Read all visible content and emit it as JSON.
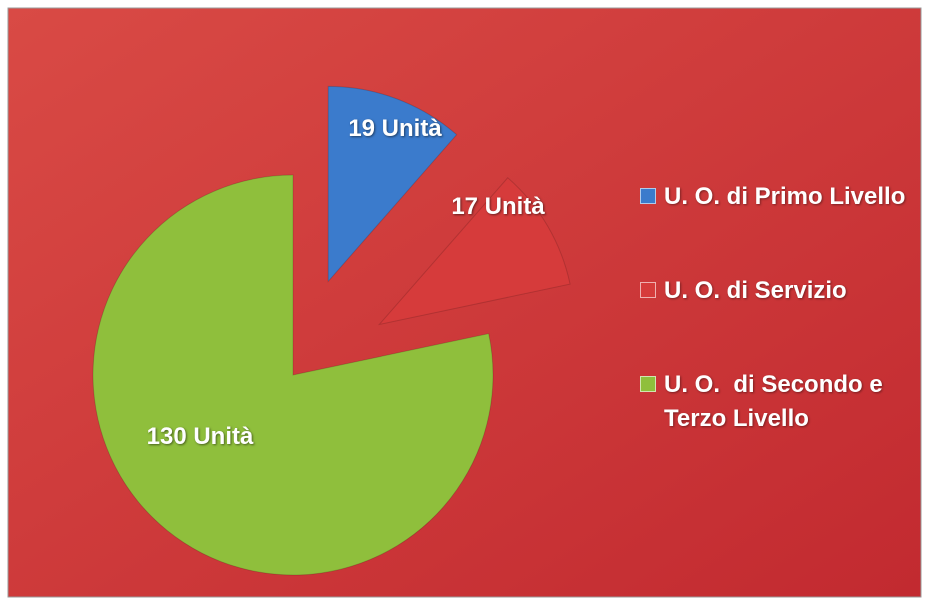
{
  "chart_data": {
    "type": "pie",
    "categories": [
      "U. O. di Primo Livello",
      "U. O. di Servizio",
      "U. O.  di Secondo e Terzo Livello"
    ],
    "values": [
      19,
      17,
      130
    ],
    "value_labels": [
      "19 Unità",
      "17 Unità",
      "130 Unità"
    ],
    "colors": [
      "#3b7bcc",
      "#d63b3b",
      "#8fbf3c"
    ],
    "legend": "right"
  }
}
